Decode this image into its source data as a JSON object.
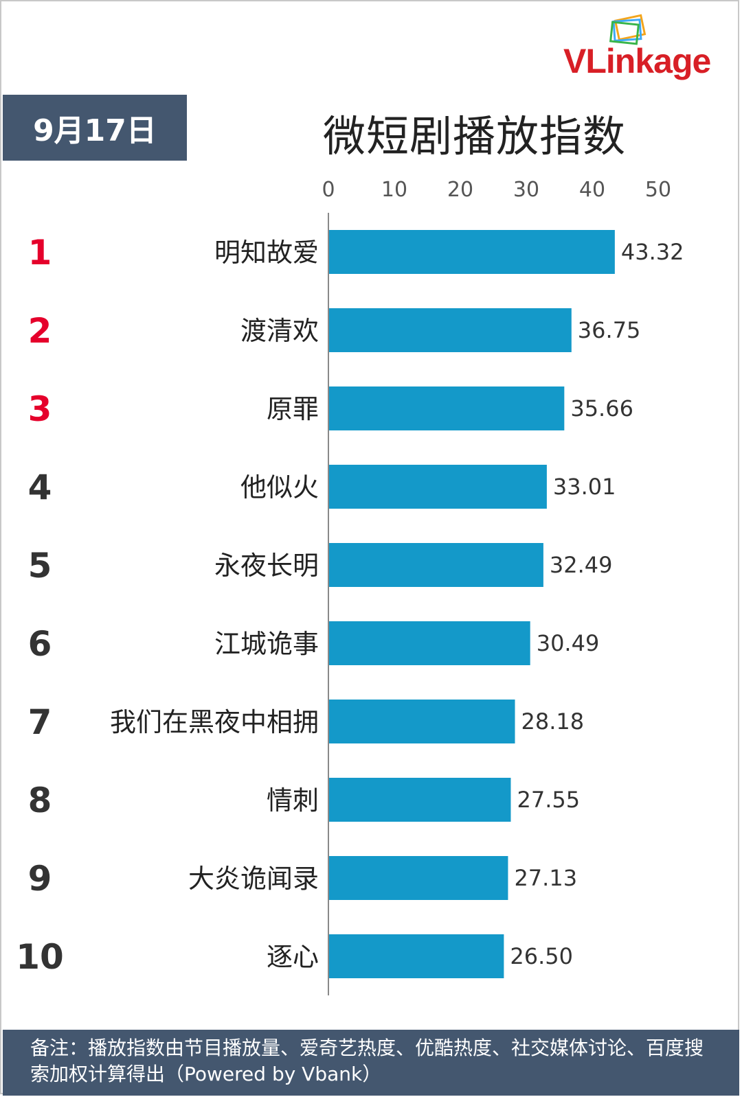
{
  "header": {
    "brand": "VLinkage",
    "date": "9月17日",
    "title": "微短剧播放指数"
  },
  "footer": {
    "note": "备注：播放指数由节目播放量、爱奇艺热度、优酷热度、社交媒体讨论、百度搜索加权计算得出（Powered by Vbank）"
  },
  "colors": {
    "bar": "#1499c9",
    "rank_top": "#e5002b",
    "rank_other": "#333333",
    "header_bg": "#44576f",
    "brand": "#d81f26"
  },
  "chart_data": {
    "type": "bar",
    "orientation": "horizontal",
    "xlim": [
      0,
      50
    ],
    "x_ticks": [
      0,
      10,
      20,
      30,
      40,
      50
    ],
    "axis_position": "top",
    "grid": false,
    "ranks": [
      "1",
      "2",
      "3",
      "4",
      "5",
      "6",
      "7",
      "8",
      "9",
      "10"
    ],
    "categories": [
      "明知故爱",
      "渡清欢",
      "原罪",
      "他似火",
      "永夜长明",
      "江城诡事",
      "我们在黑夜中相拥",
      "情刺",
      "大炎诡闻录",
      "逐心"
    ],
    "values": [
      43.32,
      36.75,
      35.66,
      33.01,
      32.49,
      30.49,
      28.18,
      27.55,
      27.13,
      26.5
    ],
    "value_labels": [
      "43.32",
      "36.75",
      "35.66",
      "33.01",
      "32.49",
      "30.49",
      "28.18",
      "27.55",
      "27.13",
      "26.50"
    ]
  }
}
